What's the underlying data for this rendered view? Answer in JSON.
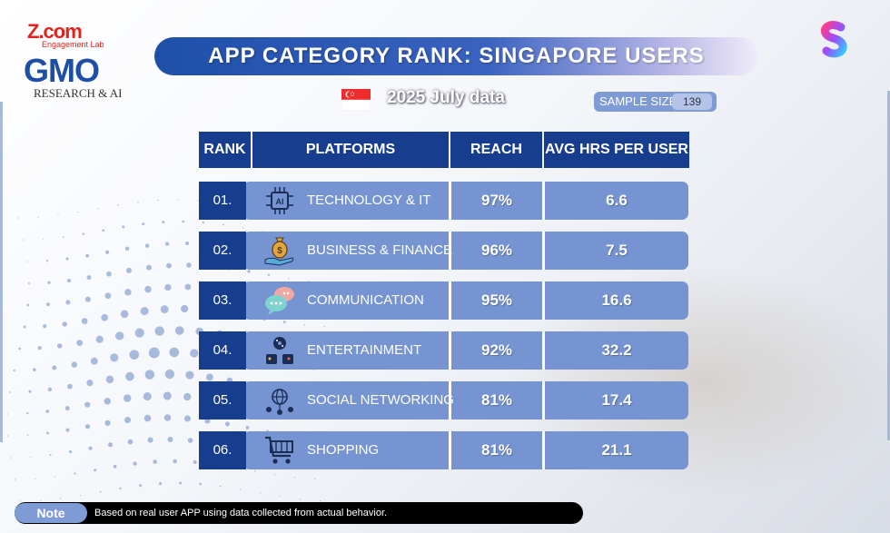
{
  "logos": {
    "zcom": "Z.com",
    "zcom_sub": "Engagement Lab",
    "gmo": "GMO",
    "gmo_sub": "RESEARCH & AI"
  },
  "title": "APP CATEGORY RANK: SINGAPORE USERS",
  "data_label": "2025 July data",
  "sample": {
    "label": "SAMPLE SIZE",
    "value": "139"
  },
  "colors": {
    "header": "#173d8f",
    "row": "#7594d1",
    "accent": "#1e4fa8"
  },
  "chart_data": {
    "type": "table",
    "columns": [
      "RANK",
      "PLATFORMS",
      "REACH",
      "AVG HRS PER USER"
    ],
    "rows": [
      {
        "rank": "01.",
        "platform": "TECHNOLOGY & IT",
        "icon": "ai-chip-icon",
        "reach": "97%",
        "avg_hrs": "6.6"
      },
      {
        "rank": "02.",
        "platform": "BUSINESS & FINANCE",
        "icon": "money-bag-hand-icon",
        "reach": "96%",
        "avg_hrs": "7.5"
      },
      {
        "rank": "03.",
        "platform": "COMMUNICATION",
        "icon": "chat-bubbles-icon",
        "reach": "95%",
        "avg_hrs": "16.6"
      },
      {
        "rank": "04.",
        "platform": "ENTERTAINMENT",
        "icon": "entertainment-icon",
        "reach": "92%",
        "avg_hrs": "32.2"
      },
      {
        "rank": "05.",
        "platform": "SOCIAL NETWORKING",
        "icon": "social-network-icon",
        "reach": "81%",
        "avg_hrs": "17.4"
      },
      {
        "rank": "06.",
        "platform": "SHOPPING",
        "icon": "shopping-cart-icon",
        "reach": "81%",
        "avg_hrs": "21.1"
      }
    ]
  },
  "note": {
    "label": "Note",
    "text": "Based on real user APP using data collected from actual behavior."
  }
}
